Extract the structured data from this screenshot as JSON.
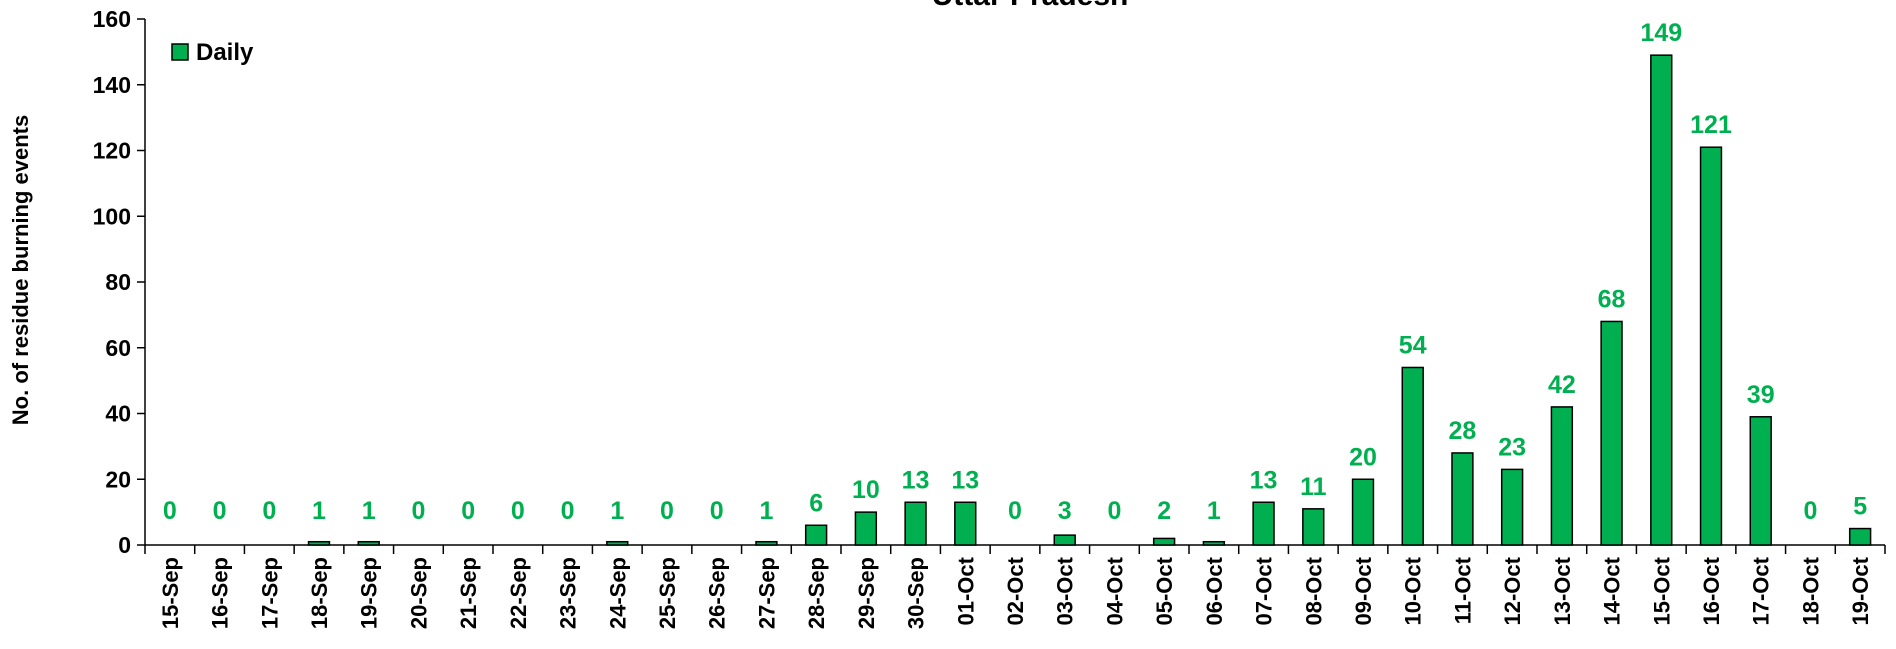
{
  "chart_data": {
    "type": "bar",
    "title": "Uttar Pradesh",
    "xlabel": "",
    "ylabel": "No. of residue burning events",
    "ylim": [
      0,
      160
    ],
    "yticks": [
      0,
      20,
      40,
      60,
      80,
      100,
      120,
      140,
      160
    ],
    "grid": false,
    "legend_position": "top-left",
    "bar_color": "#00b050",
    "label_color": "#00b050",
    "categories": [
      "15-Sep",
      "16-Sep",
      "17-Sep",
      "18-Sep",
      "19-Sep",
      "20-Sep",
      "21-Sep",
      "22-Sep",
      "23-Sep",
      "24-Sep",
      "25-Sep",
      "26-Sep",
      "27-Sep",
      "28-Sep",
      "29-Sep",
      "30-Sep",
      "01-Oct",
      "02-Oct",
      "03-Oct",
      "04-Oct",
      "05-Oct",
      "06-Oct",
      "07-Oct",
      "08-Oct",
      "09-Oct",
      "10-Oct",
      "11-Oct",
      "12-Oct",
      "13-Oct",
      "14-Oct",
      "15-Oct",
      "16-Oct",
      "17-Oct",
      "18-Oct",
      "19-Oct"
    ],
    "series": [
      {
        "name": "Daily",
        "values": [
          0,
          0,
          0,
          1,
          1,
          0,
          0,
          0,
          0,
          1,
          0,
          0,
          1,
          6,
          10,
          13,
          13,
          0,
          3,
          0,
          2,
          1,
          13,
          11,
          20,
          54,
          28,
          23,
          42,
          68,
          149,
          121,
          39,
          0,
          5
        ]
      }
    ]
  }
}
